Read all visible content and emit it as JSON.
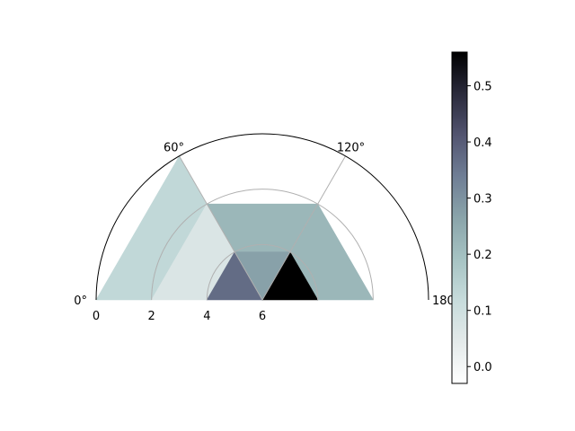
{
  "chart_data": {
    "type": "heatmap",
    "projection": "polar-half",
    "theta_range_deg": [
      0,
      180
    ],
    "r_range": [
      0,
      6
    ],
    "theta_tick_labels": [
      {
        "deg": 0,
        "label": "0°"
      },
      {
        "deg": 60,
        "label": "60°"
      },
      {
        "deg": 120,
        "label": "120°"
      },
      {
        "deg": 180,
        "label": "180°"
      }
    ],
    "r_tick_labels": [
      {
        "r": 6,
        "label": "6"
      },
      {
        "r": 4,
        "label": "4"
      },
      {
        "r": 2,
        "label": "2"
      },
      {
        "r": 0,
        "label": "0"
      }
    ],
    "grid": true,
    "cells": [
      {
        "r0": 0,
        "r1": 2,
        "t0": 0,
        "t1": 60,
        "value": 0.13
      },
      {
        "r0": 0,
        "r1": 2,
        "t0": 60,
        "t1": 120,
        "value": -0.03
      },
      {
        "r0": 0,
        "r1": 2,
        "t0": 120,
        "t1": 180,
        "value": -0.03
      },
      {
        "r0": 2,
        "r1": 4,
        "t0": 0,
        "t1": 60,
        "value": 0.07
      },
      {
        "r0": 2,
        "r1": 4,
        "t0": 60,
        "t1": 120,
        "value": 0.22
      },
      {
        "r0": 2,
        "r1": 4,
        "t0": 120,
        "t1": 180,
        "value": 0.22
      },
      {
        "r0": 4,
        "r1": 6,
        "t0": 0,
        "t1": 60,
        "value": 0.37
      },
      {
        "r0": 4,
        "r1": 6,
        "t0": 60,
        "t1": 120,
        "value": 0.27
      },
      {
        "r0": 4,
        "r1": 6,
        "t0": 120,
        "t1": 180,
        "value": 0.56
      }
    ],
    "colorbar": {
      "colormap": "bone_r",
      "vmin": -0.03,
      "vmax": 0.56,
      "ticks": [
        0.0,
        0.1,
        0.2,
        0.3,
        0.4,
        0.5
      ],
      "tick_labels": [
        "0.0",
        "0.1",
        "0.2",
        "0.3",
        "0.4",
        "0.5"
      ]
    }
  }
}
